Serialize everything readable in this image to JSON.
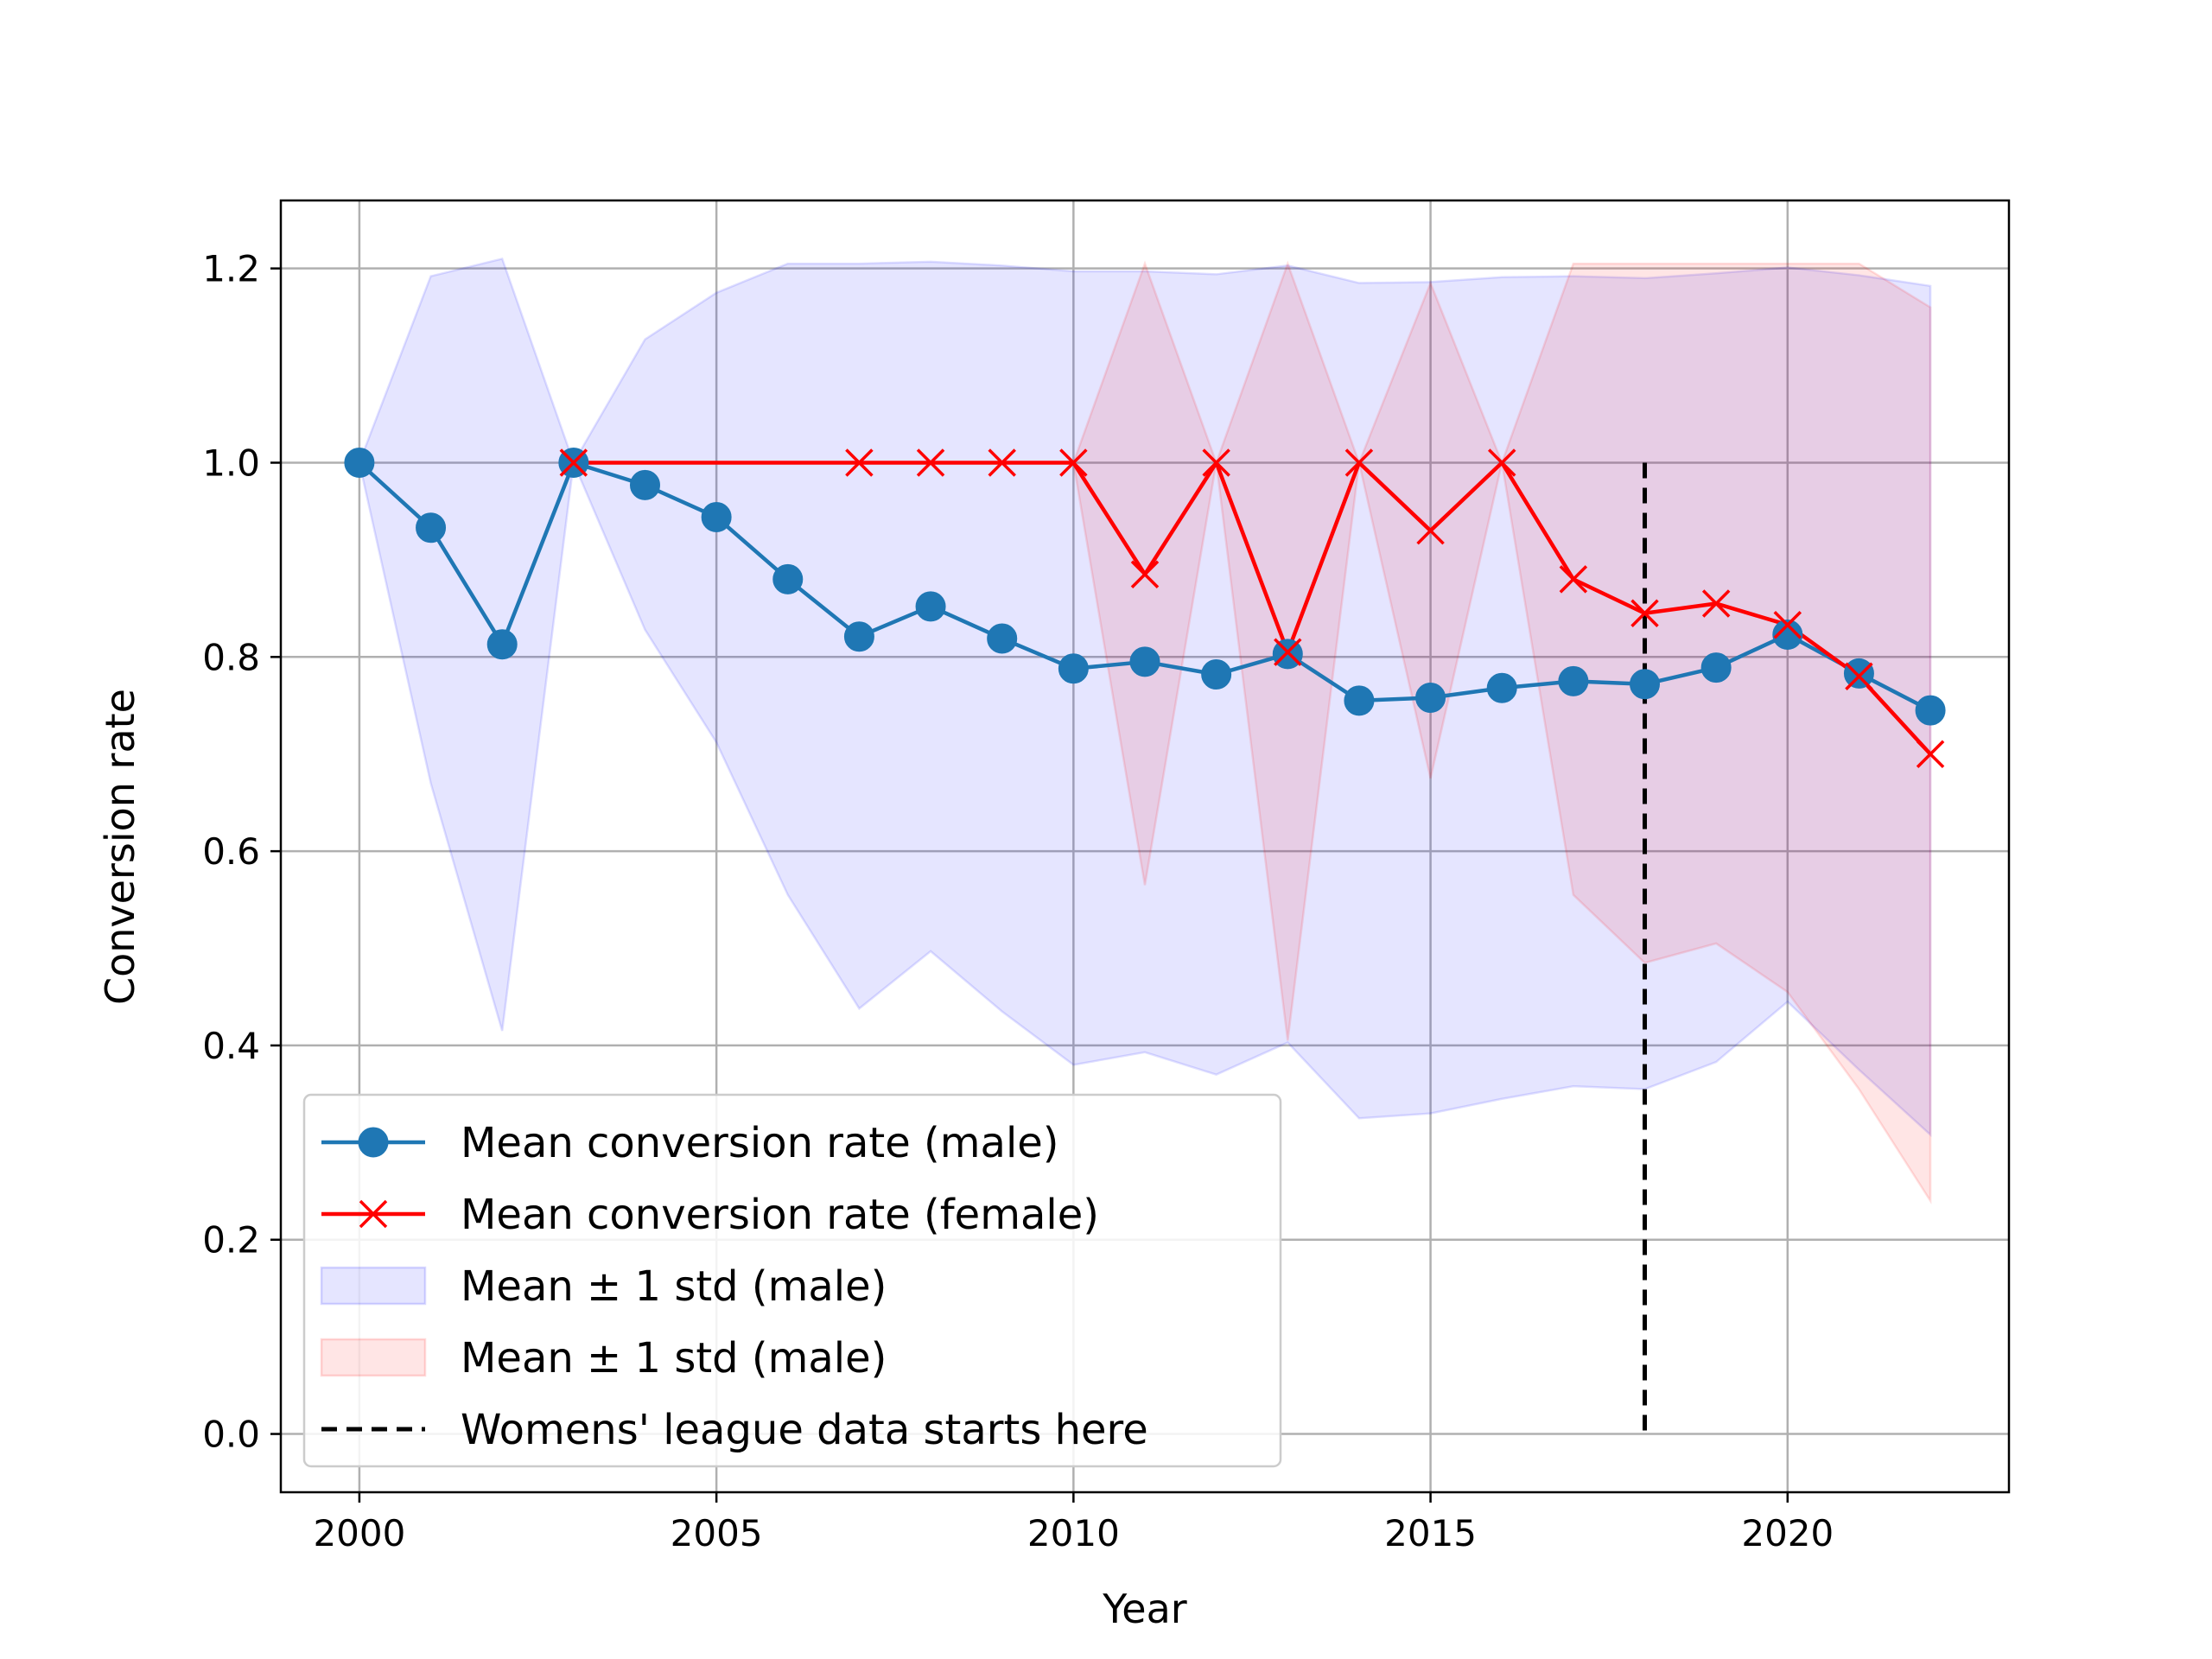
{
  "chart_data": {
    "type": "line",
    "xlabel": "Year",
    "ylabel": "Conversion rate",
    "xlim": [
      1998.9,
      2023.1
    ],
    "ylim": [
      -0.06,
      1.27
    ],
    "xticks": [
      2000,
      2005,
      2010,
      2015,
      2020
    ],
    "xtick_labels": [
      "2000",
      "2005",
      "2010",
      "2015",
      "2020"
    ],
    "yticks": [
      0.0,
      0.2,
      0.4,
      0.6,
      0.8,
      1.0,
      1.2
    ],
    "ytick_labels": [
      "0.0",
      "0.2",
      "0.4",
      "0.6",
      "0.8",
      "1.0",
      "1.2"
    ],
    "grid": true,
    "legend_position": "lower-left",
    "series": [
      {
        "name": "Mean conversion rate (male)",
        "kind": "line",
        "marker": "circle",
        "color": "#1f77b4",
        "x": [
          2000,
          2001,
          2002,
          2003,
          2004,
          2005,
          2006,
          2007,
          2008,
          2009,
          2010,
          2011,
          2012,
          2013,
          2014,
          2015,
          2016,
          2017,
          2018,
          2019,
          2020,
          2021,
          2022
        ],
        "y": [
          1.0,
          0.933,
          0.813,
          1.0,
          0.977,
          0.944,
          0.88,
          0.821,
          0.852,
          0.819,
          0.788,
          0.795,
          0.782,
          0.803,
          0.755,
          0.758,
          0.768,
          0.775,
          0.772,
          0.789,
          0.823,
          0.783,
          0.745
        ]
      },
      {
        "name": "Mean conversion rate (female)",
        "kind": "line",
        "marker": "x",
        "color": "#ff0000",
        "x": [
          2003,
          2007,
          2008,
          2009,
          2010,
          2011,
          2012,
          2013,
          2014,
          2015,
          2016,
          2017,
          2018,
          2019,
          2020,
          2021,
          2022
        ],
        "y": [
          1.0,
          1.0,
          1.0,
          1.0,
          1.0,
          0.885,
          1.0,
          0.805,
          1.0,
          0.93,
          1.0,
          0.88,
          0.845,
          0.855,
          0.833,
          0.78,
          0.7
        ]
      },
      {
        "name": "Mean ± 1 std (male)",
        "kind": "band",
        "color": "#0000ff",
        "x": [
          2000,
          2001,
          2002,
          2003,
          2004,
          2005,
          2006,
          2007,
          2008,
          2009,
          2010,
          2011,
          2012,
          2013,
          2014,
          2015,
          2016,
          2017,
          2018,
          2019,
          2020,
          2021,
          2022
        ],
        "lower": [
          1.0,
          0.67,
          0.415,
          1.0,
          0.828,
          0.712,
          0.555,
          0.438,
          0.497,
          0.435,
          0.38,
          0.393,
          0.37,
          0.403,
          0.325,
          0.33,
          0.345,
          0.358,
          0.355,
          0.383,
          0.445,
          0.375,
          0.308
        ],
        "upper": [
          1.0,
          1.192,
          1.21,
          1.0,
          1.127,
          1.175,
          1.205,
          1.205,
          1.207,
          1.203,
          1.197,
          1.197,
          1.194,
          1.203,
          1.185,
          1.186,
          1.191,
          1.192,
          1.19,
          1.195,
          1.201,
          1.193,
          1.182
        ]
      },
      {
        "name": "Mean ± 1 std (male)",
        "kind": "band",
        "color": "#ff0000",
        "x": [
          2010,
          2011,
          2012,
          2013,
          2014,
          2015,
          2016,
          2017,
          2018,
          2019,
          2020,
          2021,
          2022
        ],
        "lower": [
          1.0,
          0.565,
          1.0,
          0.405,
          1.0,
          0.675,
          1.0,
          0.555,
          0.485,
          0.505,
          0.455,
          0.355,
          0.24
        ],
        "upper": [
          1.0,
          1.205,
          1.0,
          1.205,
          1.0,
          1.185,
          1.0,
          1.205,
          1.205,
          1.205,
          1.205,
          1.205,
          1.16
        ]
      },
      {
        "name": "Womens' league data starts here",
        "kind": "vline",
        "color": "#000000",
        "x": 2018,
        "y_range": [
          0.0,
          1.0
        ]
      }
    ]
  }
}
